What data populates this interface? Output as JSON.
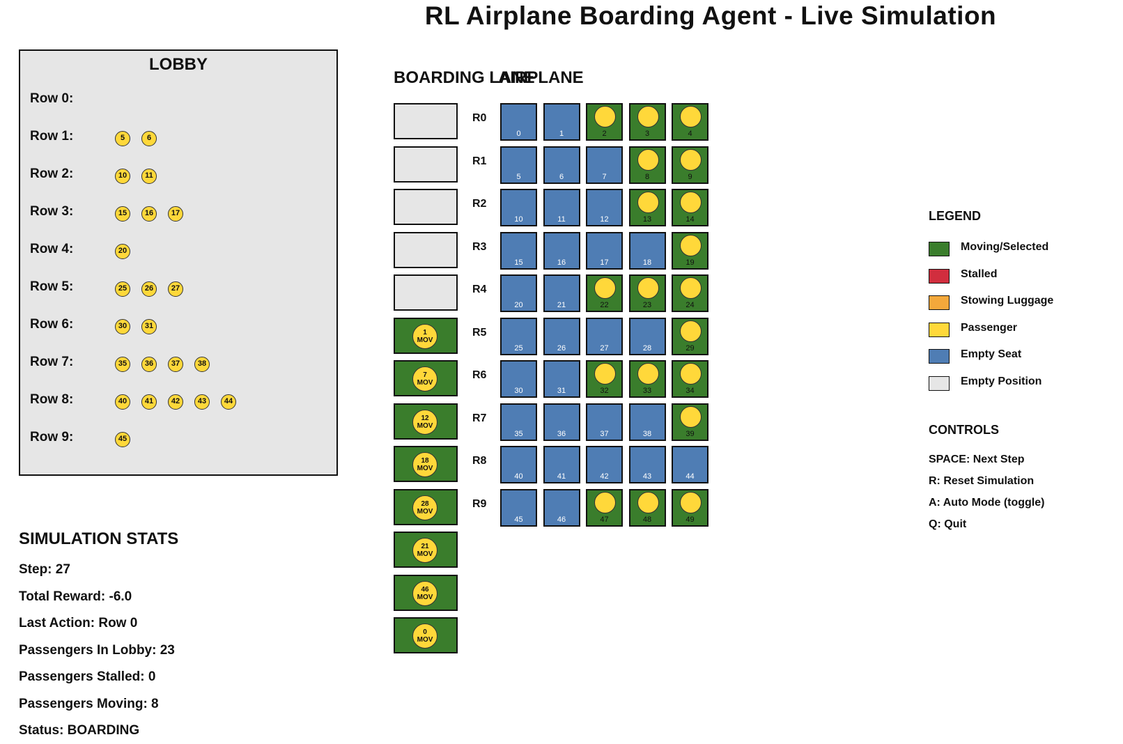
{
  "title": "RL Airplane Boarding Agent - Live Simulation",
  "lobby": {
    "title": "LOBBY",
    "rows": [
      {
        "label": "Row 0:",
        "passengers": []
      },
      {
        "label": "Row 1:",
        "passengers": [
          "5",
          "6"
        ]
      },
      {
        "label": "Row 2:",
        "passengers": [
          "10",
          "11"
        ]
      },
      {
        "label": "Row 3:",
        "passengers": [
          "15",
          "16",
          "17"
        ]
      },
      {
        "label": "Row 4:",
        "passengers": [
          "20"
        ]
      },
      {
        "label": "Row 5:",
        "passengers": [
          "25",
          "26",
          "27"
        ]
      },
      {
        "label": "Row 6:",
        "passengers": [
          "30",
          "31"
        ]
      },
      {
        "label": "Row 7:",
        "passengers": [
          "35",
          "36",
          "37",
          "38"
        ]
      },
      {
        "label": "Row 8:",
        "passengers": [
          "40",
          "41",
          "42",
          "43",
          "44"
        ]
      },
      {
        "label": "Row 9:",
        "passengers": [
          "45"
        ]
      }
    ]
  },
  "lane": {
    "title": "BOARDING LANE",
    "cells": [
      {
        "state": "empty"
      },
      {
        "state": "empty"
      },
      {
        "state": "empty"
      },
      {
        "state": "empty"
      },
      {
        "state": "empty"
      },
      {
        "state": "moving",
        "id": "1",
        "status": "MOV"
      },
      {
        "state": "moving",
        "id": "7",
        "status": "MOV"
      },
      {
        "state": "moving",
        "id": "12",
        "status": "MOV"
      },
      {
        "state": "moving",
        "id": "18",
        "status": "MOV"
      },
      {
        "state": "moving",
        "id": "28",
        "status": "MOV"
      },
      {
        "state": "moving",
        "id": "21",
        "status": "MOV"
      },
      {
        "state": "moving",
        "id": "46",
        "status": "MOV"
      },
      {
        "state": "moving",
        "id": "0",
        "status": "MOV"
      }
    ]
  },
  "airplane": {
    "title": "AIRPLANE",
    "rows": [
      {
        "label": "R0",
        "seats": [
          {
            "n": "0",
            "occ": false
          },
          {
            "n": "1",
            "occ": false
          },
          {
            "n": "2",
            "occ": true
          },
          {
            "n": "3",
            "occ": true
          },
          {
            "n": "4",
            "occ": true
          }
        ]
      },
      {
        "label": "R1",
        "seats": [
          {
            "n": "5",
            "occ": false
          },
          {
            "n": "6",
            "occ": false
          },
          {
            "n": "7",
            "occ": false
          },
          {
            "n": "8",
            "occ": true
          },
          {
            "n": "9",
            "occ": true
          }
        ]
      },
      {
        "label": "R2",
        "seats": [
          {
            "n": "10",
            "occ": false
          },
          {
            "n": "11",
            "occ": false
          },
          {
            "n": "12",
            "occ": false
          },
          {
            "n": "13",
            "occ": true
          },
          {
            "n": "14",
            "occ": true
          }
        ]
      },
      {
        "label": "R3",
        "seats": [
          {
            "n": "15",
            "occ": false
          },
          {
            "n": "16",
            "occ": false
          },
          {
            "n": "17",
            "occ": false
          },
          {
            "n": "18",
            "occ": false
          },
          {
            "n": "19",
            "occ": true
          }
        ]
      },
      {
        "label": "R4",
        "seats": [
          {
            "n": "20",
            "occ": false
          },
          {
            "n": "21",
            "occ": false
          },
          {
            "n": "22",
            "occ": true
          },
          {
            "n": "23",
            "occ": true
          },
          {
            "n": "24",
            "occ": true
          }
        ]
      },
      {
        "label": "R5",
        "seats": [
          {
            "n": "25",
            "occ": false
          },
          {
            "n": "26",
            "occ": false
          },
          {
            "n": "27",
            "occ": false
          },
          {
            "n": "28",
            "occ": false
          },
          {
            "n": "29",
            "occ": true
          }
        ]
      },
      {
        "label": "R6",
        "seats": [
          {
            "n": "30",
            "occ": false
          },
          {
            "n": "31",
            "occ": false
          },
          {
            "n": "32",
            "occ": true
          },
          {
            "n": "33",
            "occ": true
          },
          {
            "n": "34",
            "occ": true
          }
        ]
      },
      {
        "label": "R7",
        "seats": [
          {
            "n": "35",
            "occ": false
          },
          {
            "n": "36",
            "occ": false
          },
          {
            "n": "37",
            "occ": false
          },
          {
            "n": "38",
            "occ": false
          },
          {
            "n": "39",
            "occ": true
          }
        ]
      },
      {
        "label": "R8",
        "seats": [
          {
            "n": "40",
            "occ": false
          },
          {
            "n": "41",
            "occ": false
          },
          {
            "n": "42",
            "occ": false
          },
          {
            "n": "43",
            "occ": false
          },
          {
            "n": "44",
            "occ": false
          }
        ]
      },
      {
        "label": "R9",
        "seats": [
          {
            "n": "45",
            "occ": false
          },
          {
            "n": "46",
            "occ": false
          },
          {
            "n": "47",
            "occ": true
          },
          {
            "n": "48",
            "occ": true
          },
          {
            "n": "49",
            "occ": true
          }
        ]
      }
    ]
  },
  "stats": {
    "title": "SIMULATION STATS",
    "lines": [
      "Step: 27",
      "Total Reward: -6.0",
      "Last Action: Row 0",
      "Passengers In Lobby: 23",
      "Passengers Stalled: 0",
      "Passengers Moving: 8",
      "Status: BOARDING"
    ]
  },
  "legend": {
    "title": "LEGEND",
    "items": [
      {
        "label": "Moving/Selected",
        "color": "#3a7d2c"
      },
      {
        "label": "Stalled",
        "color": "#d12e3e"
      },
      {
        "label": "Stowing Luggage",
        "color": "#f3a83b"
      },
      {
        "label": "Passenger",
        "color": "#ffd83a"
      },
      {
        "label": "Empty Seat",
        "color": "#4f7db4"
      },
      {
        "label": "Empty Position",
        "color": "#e6e6e6"
      }
    ]
  },
  "controls": {
    "title": "CONTROLS",
    "items": [
      "SPACE: Next Step",
      "R: Reset Simulation",
      "A: Auto Mode (toggle)",
      "Q: Quit"
    ]
  }
}
